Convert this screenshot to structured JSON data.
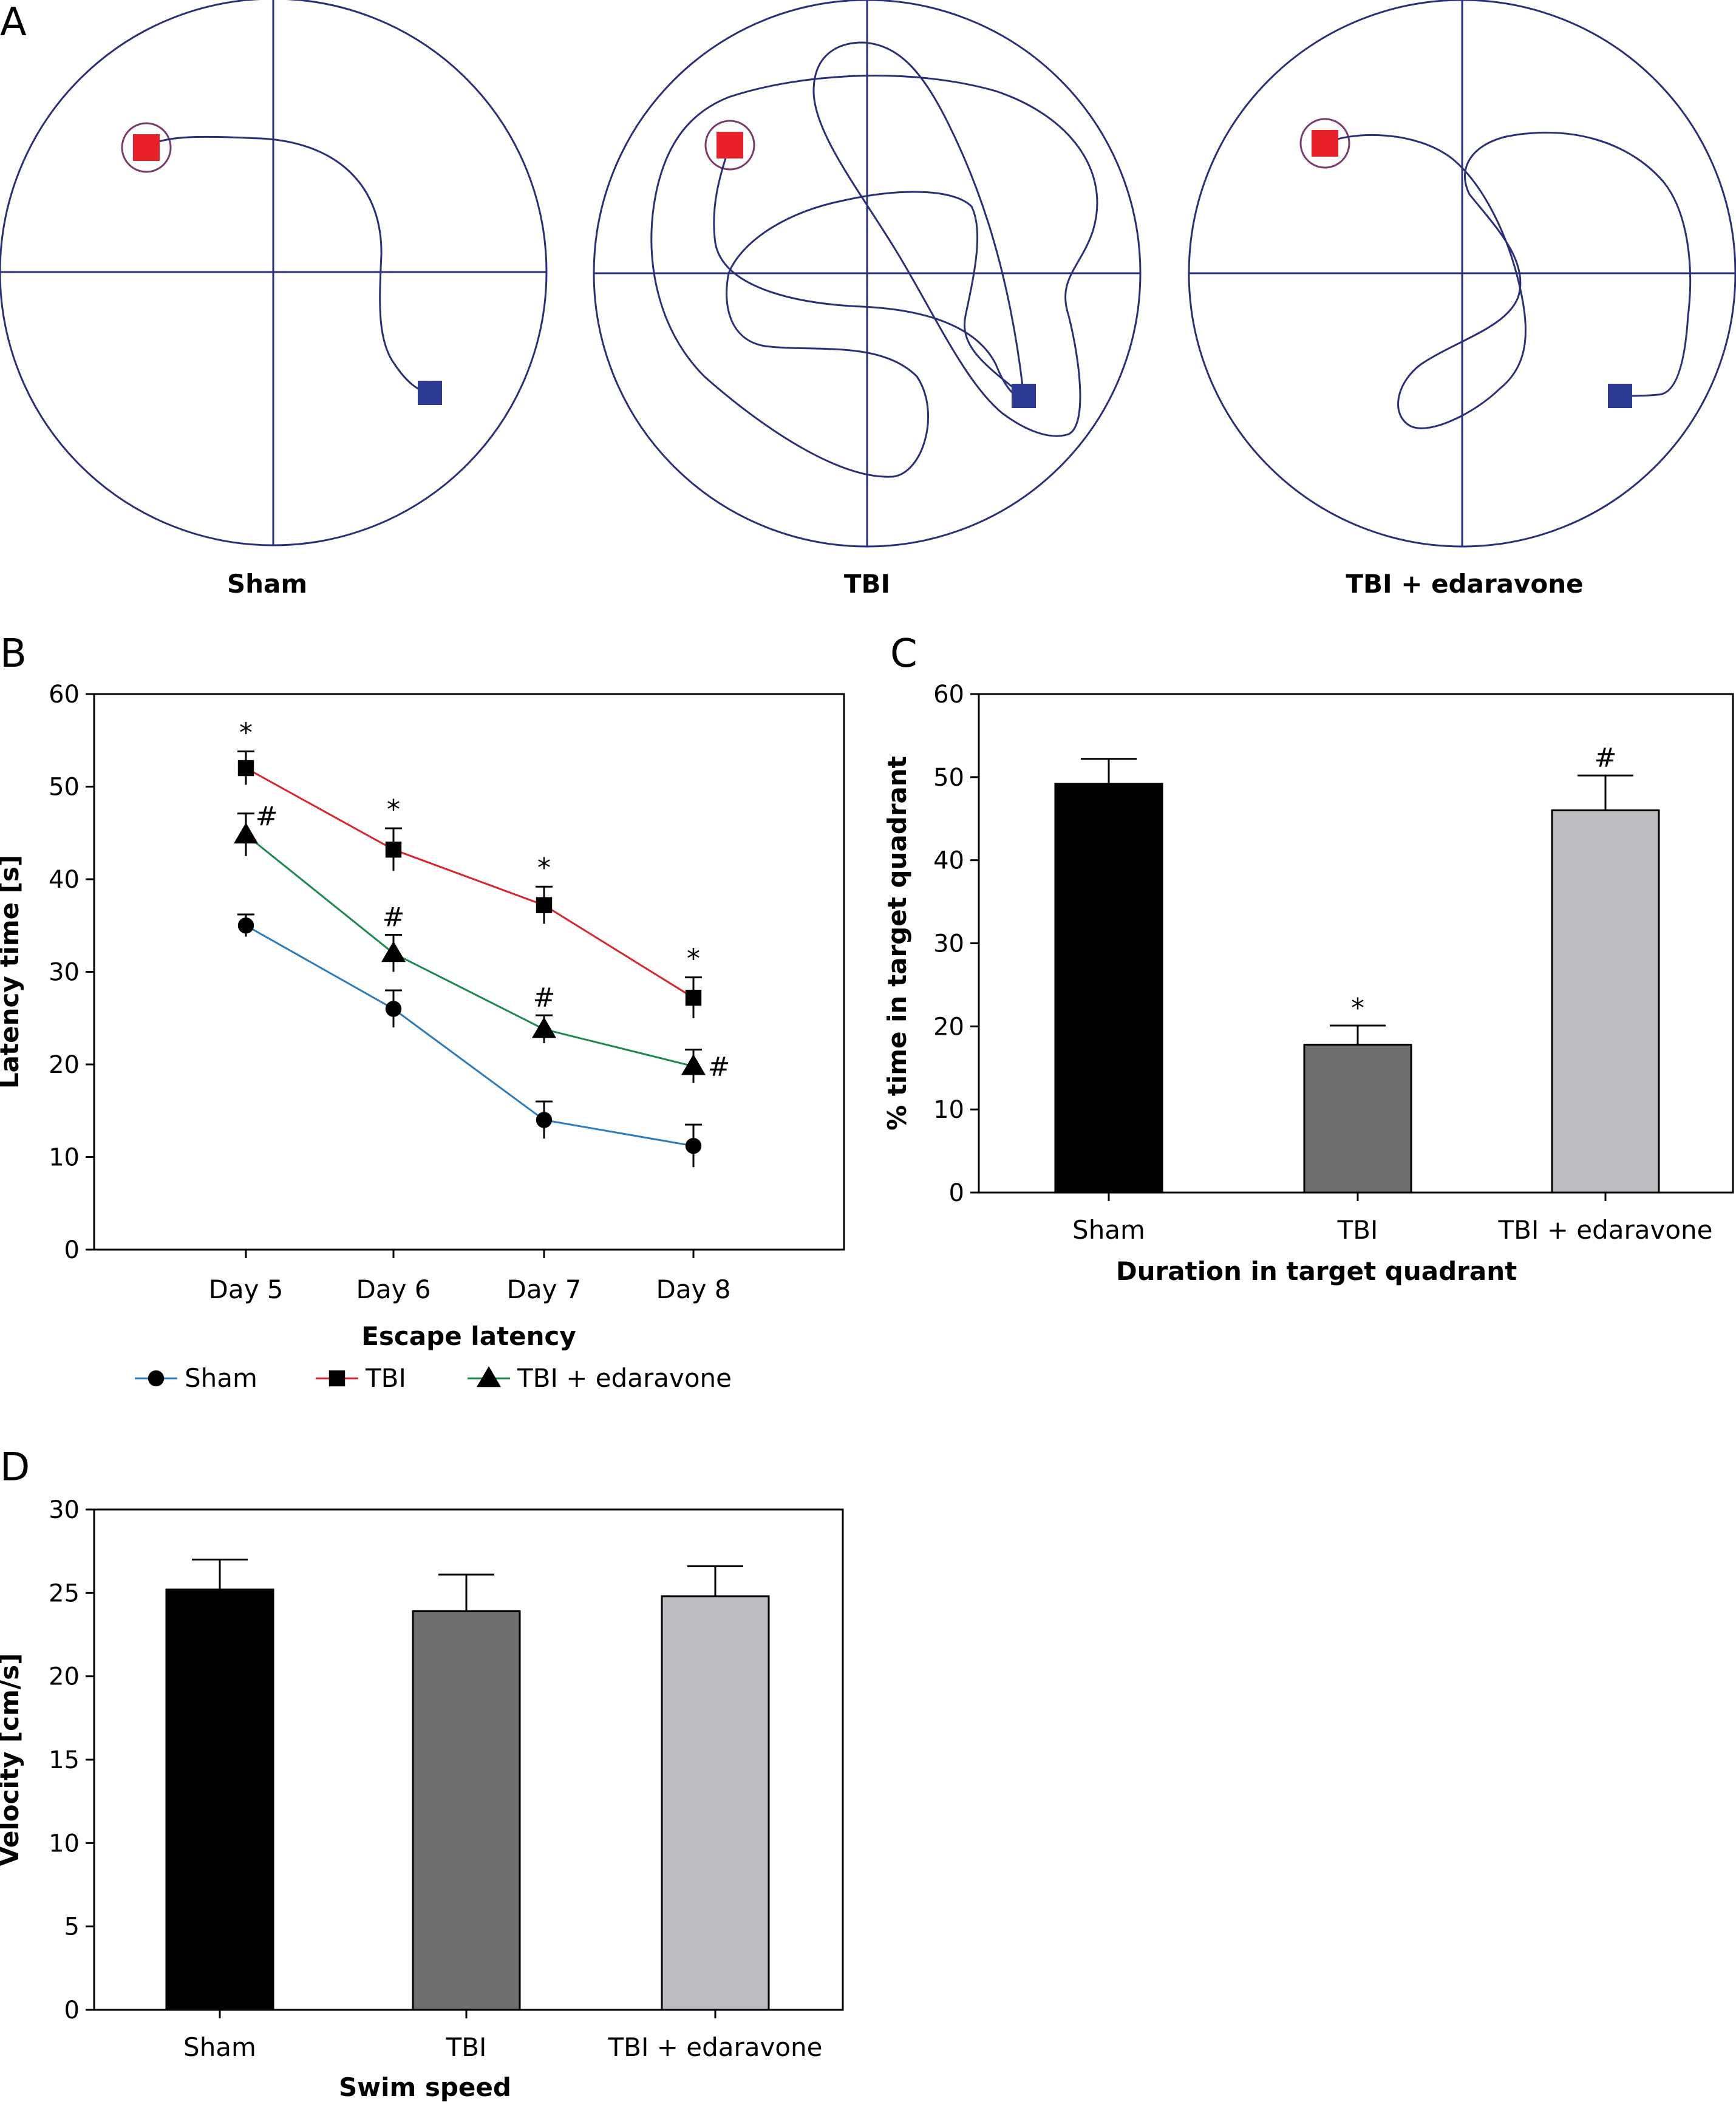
{
  "panel_a": {
    "letter": "A",
    "mazes": [
      {
        "label": "Sham"
      },
      {
        "label": "TBI"
      },
      {
        "label": "TBI + edaravone"
      }
    ],
    "colors": {
      "circle": "#2a2f7a",
      "start": "#e8202a",
      "end": "#2c3a94",
      "target_ring": "#7a3b6e"
    }
  },
  "chart_data": [
    {
      "panel": "B",
      "type": "line",
      "xlabel": "Escape latency",
      "ylabel": "Latency time [s]",
      "categories": [
        "Day 5",
        "Day 6",
        "Day 7",
        "Day 8"
      ],
      "ylim": [
        0,
        60
      ],
      "yticks": [
        0,
        10,
        20,
        30,
        40,
        50,
        60
      ],
      "legend_position": "bottom",
      "series": [
        {
          "name": "Sham",
          "marker": "circle",
          "color": "#2b7bbf",
          "values": [
            35,
            26,
            14,
            11.2
          ],
          "errors": [
            1.2,
            2.0,
            2.0,
            2.3
          ],
          "annotations": [
            "",
            "",
            "",
            ""
          ]
        },
        {
          "name": "TBI",
          "marker": "square",
          "color": "#d9262e",
          "values": [
            52,
            43.2,
            37.2,
            27.2
          ],
          "errors": [
            1.8,
            2.3,
            2.0,
            2.2
          ],
          "annotations": [
            "*",
            "*",
            "*",
            "*"
          ]
        },
        {
          "name": "TBI + edaravone",
          "marker": "triangle",
          "color": "#1c8a4e",
          "values": [
            44.8,
            32,
            23.8,
            19.8
          ],
          "errors": [
            2.3,
            2.0,
            1.5,
            1.8
          ],
          "annotations": [
            "#",
            "#",
            "#",
            "#"
          ]
        }
      ]
    },
    {
      "panel": "C",
      "type": "bar",
      "xlabel": "Duration in target quadrant",
      "ylabel": "% time in target quadrant",
      "categories": [
        "Sham",
        "TBI",
        "TBI + edaravone"
      ],
      "values": [
        49.2,
        17.8,
        46
      ],
      "errors": [
        3,
        2.3,
        4.2
      ],
      "annotations": [
        "",
        "*",
        "#"
      ],
      "colors": [
        "#000000",
        "#6d6e70",
        "#bcbdc0"
      ],
      "ylim": [
        0,
        60
      ],
      "yticks": [
        0,
        10,
        20,
        30,
        40,
        50,
        60
      ]
    },
    {
      "panel": "D",
      "type": "bar",
      "xlabel": "Swim speed",
      "ylabel": "Velocity [cm/s]",
      "categories": [
        "Sham",
        "TBI",
        "TBI + edaravone"
      ],
      "values": [
        25.2,
        23.9,
        24.8
      ],
      "errors": [
        1.8,
        2.2,
        1.8
      ],
      "annotations": [
        "",
        "",
        ""
      ],
      "colors": [
        "#000000",
        "#6d6e70",
        "#bcbdc0"
      ],
      "ylim": [
        0,
        30
      ],
      "yticks": [
        0,
        5,
        10,
        15,
        20,
        25,
        30
      ]
    }
  ]
}
